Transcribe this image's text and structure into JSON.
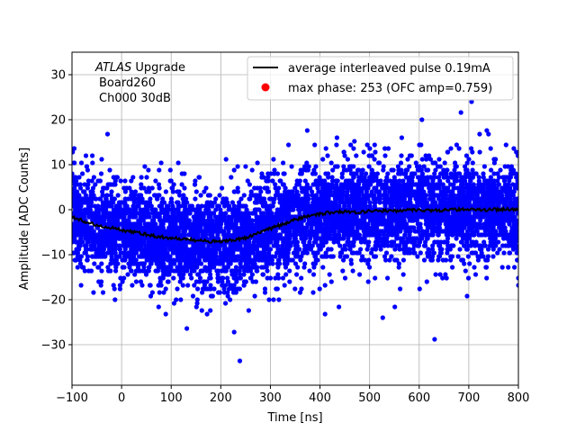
{
  "chart_data": {
    "type": "scatter",
    "title": "",
    "xlabel": "Time [ns]",
    "ylabel": "Amplitude [ADC Counts]",
    "xlim": [
      -100,
      800
    ],
    "ylim": [
      -39,
      35
    ],
    "x_ticks": [
      "−100",
      "0",
      "100",
      "200",
      "300",
      "400",
      "500",
      "600",
      "700",
      "800"
    ],
    "x_tick_values": [
      -100,
      0,
      100,
      200,
      300,
      400,
      500,
      600,
      700,
      800
    ],
    "y_ticks": [
      "−30",
      "−20",
      "−10",
      "0",
      "10",
      "20",
      "30"
    ],
    "y_tick_values": [
      -30,
      -20,
      -10,
      0,
      10,
      20,
      30
    ],
    "grid": true,
    "annotation": {
      "line1_italic": "ATLAS",
      "line1_rest": " Upgrade",
      "line2": "Board260",
      "line3": "Ch000 30dB"
    },
    "legend": {
      "placement": "top-right",
      "entries": [
        {
          "label": "average interleaved pulse 0.19mA",
          "marker": "line",
          "color": "#000000"
        },
        {
          "label": "max phase: 253 (OFC amp=0.759)",
          "marker": "dot",
          "color": "#ff0000"
        }
      ]
    },
    "series": [
      {
        "name": "samples",
        "color": "#0000ff",
        "noise_sigma": 5.2,
        "x_range": [
          -100,
          800
        ],
        "approx_point_count": 6000
      },
      {
        "name": "average interleaved pulse 0.19mA",
        "color": "#000000",
        "x": [
          -100,
          -75,
          -50,
          -25,
          0,
          25,
          50,
          75,
          100,
          125,
          150,
          175,
          200,
          225,
          250,
          275,
          300,
          325,
          350,
          375,
          400,
          425,
          450,
          475,
          500,
          525,
          550,
          575,
          600,
          625,
          650,
          675,
          700,
          725,
          750,
          775,
          800
        ],
        "y": [
          -1.5,
          -2.6,
          -3.5,
          -4.0,
          -4.5,
          -5.0,
          -5.5,
          -6.0,
          -6.3,
          -6.6,
          -6.8,
          -7.0,
          -7.1,
          -6.8,
          -6.2,
          -5.3,
          -4.2,
          -3.2,
          -2.2,
          -1.5,
          -0.9,
          -0.6,
          -0.5,
          -0.5,
          -0.4,
          -0.3,
          -0.2,
          -0.1,
          0.0,
          -0.2,
          -0.1,
          0.0,
          0.2,
          0.0,
          0.0,
          0.1,
          0.0
        ]
      }
    ]
  },
  "colors": {
    "samples": "#0000ff",
    "average": "#000000",
    "max_phase": "#ff0000",
    "grid": "#b0b0b0"
  }
}
